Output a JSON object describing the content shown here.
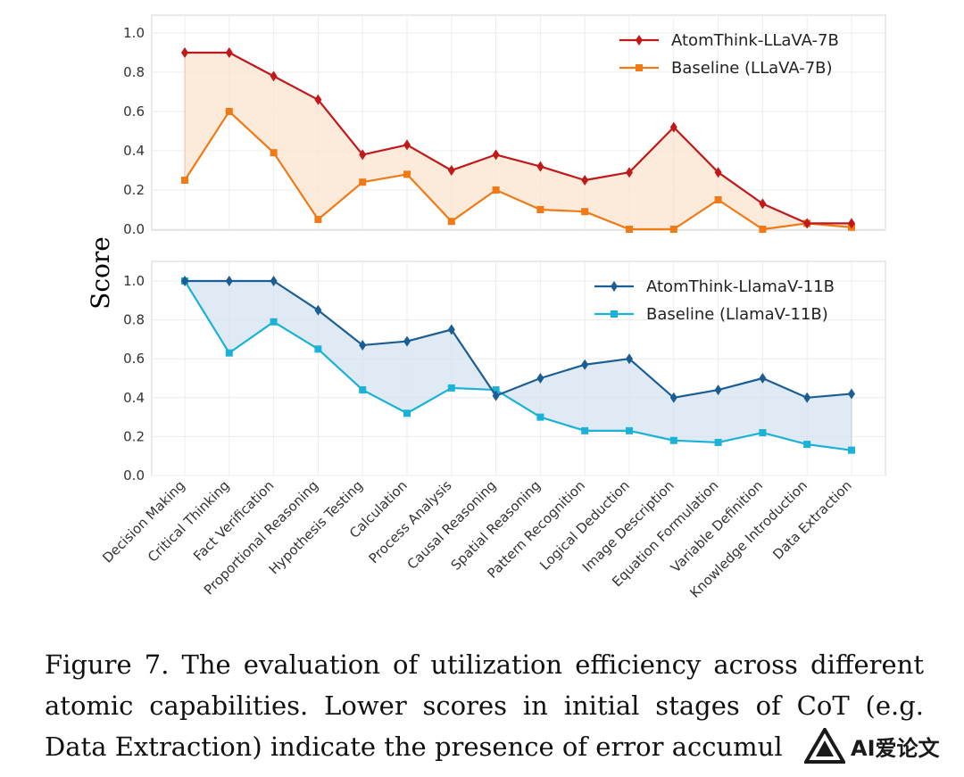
{
  "chart_data": {
    "type": "line",
    "ylabel": "Score",
    "categories": [
      "Decision Making",
      "Critical Thinking",
      "Fact Verification",
      "Proportional Reasoning",
      "Hypothesis Testing",
      "Calculation",
      "Process Analysis",
      "Causal Reasoning",
      "Spatial Reasoning",
      "Pattern Recognition",
      "Logical Deduction",
      "Image Description",
      "Equation Formulation",
      "Variable Definition",
      "Knowledge Introduction",
      "Data Extraction"
    ],
    "yticks": [
      "0.0",
      "0.2",
      "0.4",
      "0.6",
      "0.8",
      "1.0"
    ],
    "grid": true,
    "legend_position": "top-right",
    "panels": [
      {
        "ylim": [
          0,
          1.1
        ],
        "fill_color": "#fbe3cf",
        "series": [
          {
            "name": "AtomThink-LLaVA-7B",
            "color": "#c0191b",
            "marker": "diamond",
            "values": [
              0.9,
              0.9,
              0.78,
              0.66,
              0.38,
              0.43,
              0.3,
              0.38,
              0.32,
              0.25,
              0.29,
              0.52,
              0.29,
              0.13,
              0.03,
              0.03
            ]
          },
          {
            "name": "Baseline (LLaVA-7B)",
            "color": "#f07a16",
            "marker": "square",
            "values": [
              0.25,
              0.6,
              0.39,
              0.05,
              0.24,
              0.28,
              0.04,
              0.2,
              0.1,
              0.09,
              0.0,
              0.0,
              0.15,
              0.0,
              0.03,
              0.01
            ]
          }
        ]
      },
      {
        "ylim": [
          0,
          1.1
        ],
        "fill_color": "#d5e3f1",
        "series": [
          {
            "name": "AtomThink-LlamaV-11B",
            "color": "#1b5e93",
            "marker": "diamond",
            "values": [
              1.0,
              1.0,
              1.0,
              0.85,
              0.67,
              0.69,
              0.75,
              0.41,
              0.5,
              0.57,
              0.6,
              0.4,
              0.44,
              0.5,
              0.4,
              0.42
            ]
          },
          {
            "name": "Baseline (LlamaV-11B)",
            "color": "#1ab2d6",
            "marker": "square",
            "values": [
              1.0,
              0.63,
              0.79,
              0.65,
              0.44,
              0.32,
              0.45,
              0.44,
              0.3,
              0.23,
              0.23,
              0.18,
              0.17,
              0.22,
              0.16,
              0.13
            ]
          }
        ]
      }
    ]
  },
  "caption": "Figure 7.  The evaluation of utilization efficiency across different atomic capabilities.  Lower scores in initial stages of CoT (e.g. Data Extraction) indicate the presence of error accumul",
  "watermark": {
    "text": "AI爱论文",
    "icon": "ai-logo-icon"
  }
}
